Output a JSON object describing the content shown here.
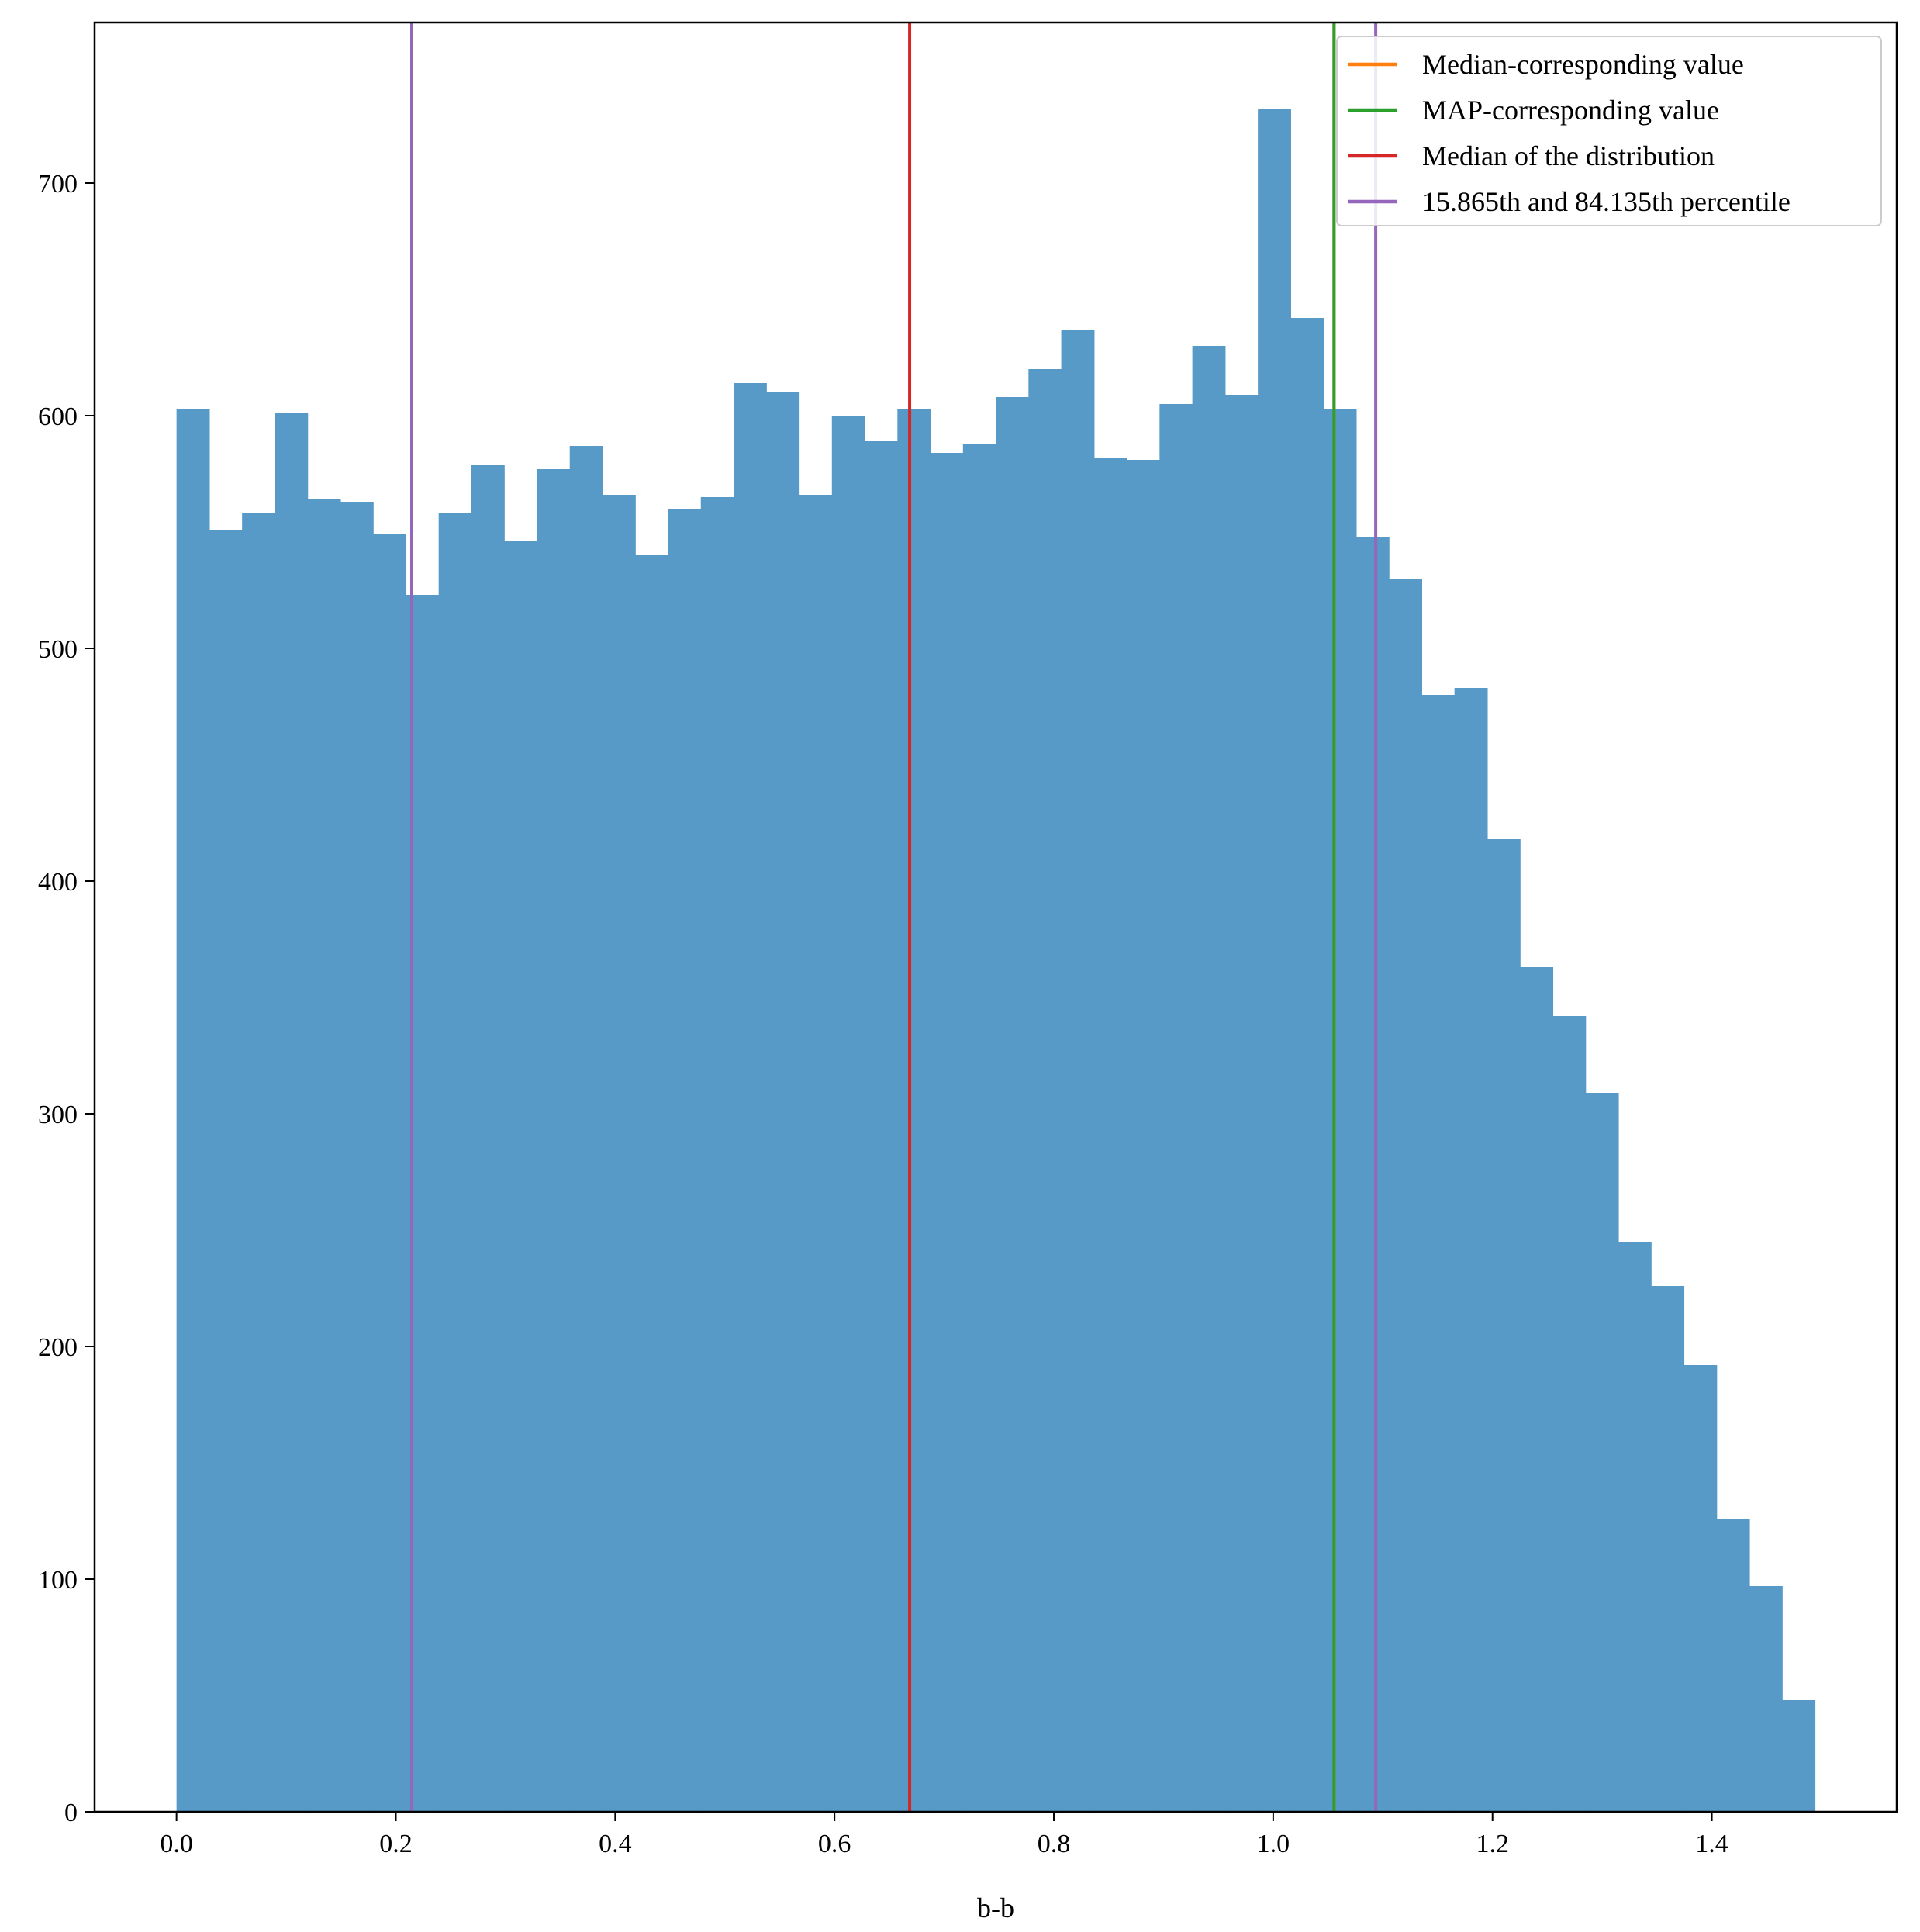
{
  "chart_data": {
    "type": "bar",
    "subtype": "histogram",
    "xlabel": "b-b",
    "ylabel": "",
    "title": "",
    "xlim": [
      -0.0747,
      1.5686
    ],
    "ylim": [
      0,
      769
    ],
    "bin_start": 0.0,
    "bin_width": 0.02988,
    "counts": [
      603,
      551,
      558,
      601,
      564,
      563,
      549,
      523,
      558,
      579,
      546,
      577,
      587,
      566,
      540,
      560,
      565,
      614,
      610,
      566,
      600,
      589,
      603,
      584,
      588,
      608,
      620,
      637,
      582,
      581,
      605,
      630,
      609,
      732,
      642,
      603,
      548,
      530,
      480,
      483,
      418,
      363,
      342,
      309,
      245,
      226,
      192,
      126,
      97,
      48
    ],
    "bar_color": "#5799c7",
    "xticks": [
      0.0,
      0.2,
      0.4,
      0.6,
      0.8,
      1.0,
      1.2,
      1.4
    ],
    "xtick_labels": [
      "0.0",
      "0.2",
      "0.4",
      "0.6",
      "0.8",
      "1.0",
      "1.2",
      "1.4"
    ],
    "yticks": [
      0,
      100,
      200,
      300,
      400,
      500,
      600,
      700
    ],
    "ytick_labels": [
      "0",
      "100",
      "200",
      "300",
      "400",
      "500",
      "600",
      "700"
    ],
    "grid": false,
    "legend_position": "top-right",
    "vlines": [
      {
        "name": "Median-corresponding value",
        "x": 1.0555,
        "color": "#ff7f0e"
      },
      {
        "name": "MAP-corresponding value",
        "x": 1.0555,
        "color": "#2ca02c"
      },
      {
        "name": "Median of the distribution",
        "x": 0.6685,
        "color": "#d62728"
      },
      {
        "name": "15.865th and 84.135th percentile",
        "x": 0.2145,
        "color": "#9467bd"
      },
      {
        "name": "15.865th and 84.135th percentile",
        "x": 1.0935,
        "color": "#9467bd"
      }
    ],
    "legend": [
      {
        "label": "Median-corresponding value",
        "color": "#ff7f0e"
      },
      {
        "label": "MAP-corresponding value",
        "color": "#2ca02c"
      },
      {
        "label": "Median of the distribution",
        "color": "#d62728"
      },
      {
        "label": "15.865th and 84.135th percentile",
        "color": "#9467bd"
      }
    ]
  }
}
